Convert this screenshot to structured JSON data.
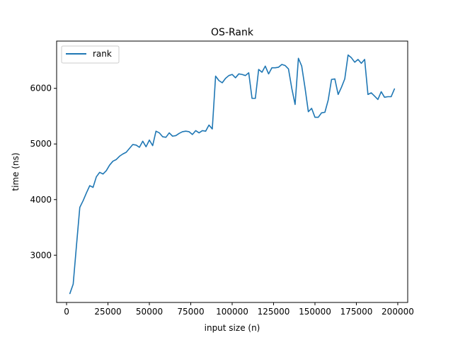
{
  "chart_data": {
    "type": "line",
    "title": "OS-Rank",
    "xlabel": "input size (n)",
    "ylabel": "time (ns)",
    "xlim": [
      -6000,
      206000
    ],
    "ylim": [
      2150,
      6850
    ],
    "x_ticks": [
      0,
      25000,
      50000,
      75000,
      100000,
      125000,
      150000,
      175000,
      200000
    ],
    "y_ticks": [
      3000,
      4000,
      5000,
      6000
    ],
    "grid": false,
    "legend_position": "upper-left",
    "series": [
      {
        "name": "rank",
        "color": "#1f77b4",
        "x": [
          2000,
          4000,
          6000,
          8000,
          10000,
          12000,
          14000,
          16000,
          18000,
          20000,
          22000,
          24000,
          26000,
          28000,
          30000,
          32000,
          34000,
          36000,
          38000,
          40000,
          42000,
          44000,
          46000,
          48000,
          50000,
          52000,
          54000,
          56000,
          58000,
          60000,
          62000,
          64000,
          66000,
          68000,
          70000,
          72000,
          74000,
          76000,
          78000,
          80000,
          82000,
          84000,
          86000,
          88000,
          90000,
          92000,
          94000,
          96000,
          98000,
          100000,
          102000,
          104000,
          106000,
          108000,
          110000,
          112000,
          114000,
          116000,
          118000,
          120000,
          122000,
          124000,
          126000,
          128000,
          130000,
          132000,
          134000,
          136000,
          138000,
          140000,
          142000,
          144000,
          146000,
          148000,
          150000,
          152000,
          154000,
          156000,
          158000,
          160000,
          162000,
          164000,
          166000,
          168000,
          170000,
          172000,
          174000,
          176000,
          178000,
          180000,
          182000,
          184000,
          186000,
          188000,
          190000,
          192000,
          194000,
          196000,
          198000
        ],
        "values": [
          2310,
          2480,
          3180,
          3860,
          3980,
          4120,
          4250,
          4220,
          4410,
          4490,
          4460,
          4520,
          4620,
          4690,
          4720,
          4780,
          4820,
          4850,
          4920,
          4990,
          4980,
          4940,
          5050,
          4950,
          5070,
          4970,
          5230,
          5200,
          5130,
          5120,
          5200,
          5140,
          5150,
          5190,
          5220,
          5230,
          5220,
          5170,
          5240,
          5200,
          5240,
          5230,
          5340,
          5270,
          6220,
          6140,
          6100,
          6180,
          6230,
          6250,
          6190,
          6260,
          6250,
          6230,
          6280,
          5820,
          5820,
          6340,
          6290,
          6400,
          6260,
          6370,
          6370,
          6380,
          6430,
          6410,
          6350,
          6000,
          5710,
          6540,
          6400,
          6010,
          5580,
          5640,
          5480,
          5480,
          5560,
          5570,
          5790,
          6160,
          6170,
          5890,
          6020,
          6170,
          6600,
          6550,
          6470,
          6520,
          6450,
          6520,
          5890,
          5920,
          5860,
          5800,
          5940,
          5840,
          5850,
          5850,
          5990
        ]
      }
    ]
  }
}
